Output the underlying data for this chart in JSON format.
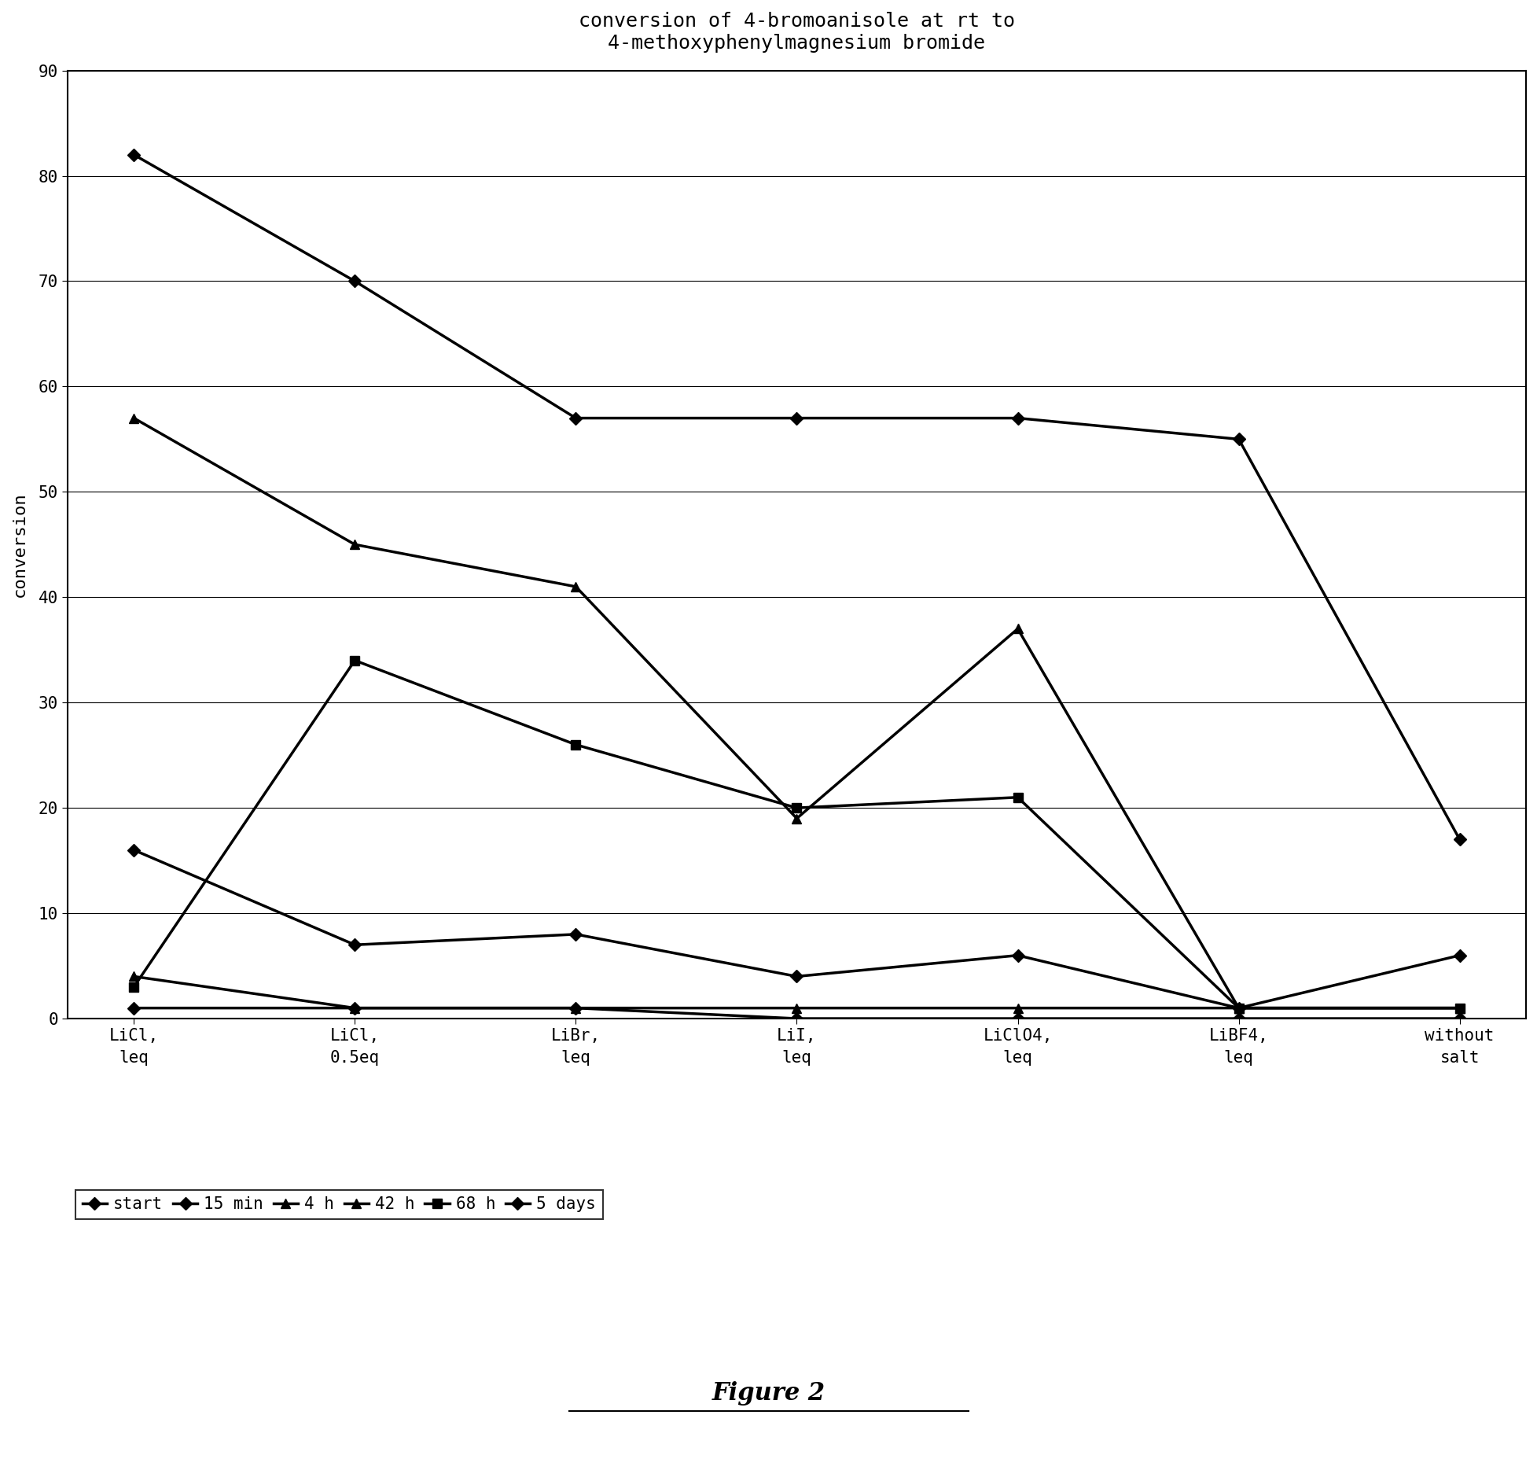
{
  "title": "conversion of 4-bromoanisole at rt to\n4-methoxyphenylmagnesium bromide",
  "ylabel": "conversion",
  "xlabel_categories": [
    "LiCl,\nleq",
    "LiCl,\n0.5eq",
    "LiBr,\nleq",
    "LiI,\nleq",
    "LiClO4,\nleq",
    "LiBF4,\nleq",
    "without\nsalt"
  ],
  "series": {
    "start": [
      82,
      70,
      57,
      57,
      57,
      55,
      17
    ],
    "15 min": [
      16,
      7,
      8,
      4,
      6,
      1,
      6
    ],
    "4 h": [
      4,
      1,
      1,
      1,
      1,
      1,
      1
    ],
    "42 h": [
      57,
      45,
      41,
      19,
      37,
      1,
      1
    ],
    "68 h": [
      3,
      34,
      26,
      20,
      21,
      1,
      1
    ],
    "5 days": [
      1,
      1,
      1,
      0,
      0,
      0,
      0
    ]
  },
  "ylim": [
    0,
    90
  ],
  "yticks": [
    0,
    10,
    20,
    30,
    40,
    50,
    60,
    70,
    80,
    90
  ],
  "figure_label": "Figure 2",
  "background_color": "#ffffff",
  "line_color": "#000000",
  "title_fontsize": 18,
  "axis_fontsize": 16,
  "tick_fontsize": 15,
  "legend_fontsize": 15,
  "series_styles": [
    {
      "marker": "D",
      "markersize": 8,
      "lw": 2.5
    },
    {
      "marker": "D",
      "markersize": 8,
      "lw": 2.5
    },
    {
      "marker": "^",
      "markersize": 9,
      "lw": 2.5
    },
    {
      "marker": "^",
      "markersize": 9,
      "lw": 2.5
    },
    {
      "marker": "s",
      "markersize": 8,
      "lw": 2.5
    },
    {
      "marker": "D",
      "markersize": 8,
      "lw": 2.5
    }
  ]
}
